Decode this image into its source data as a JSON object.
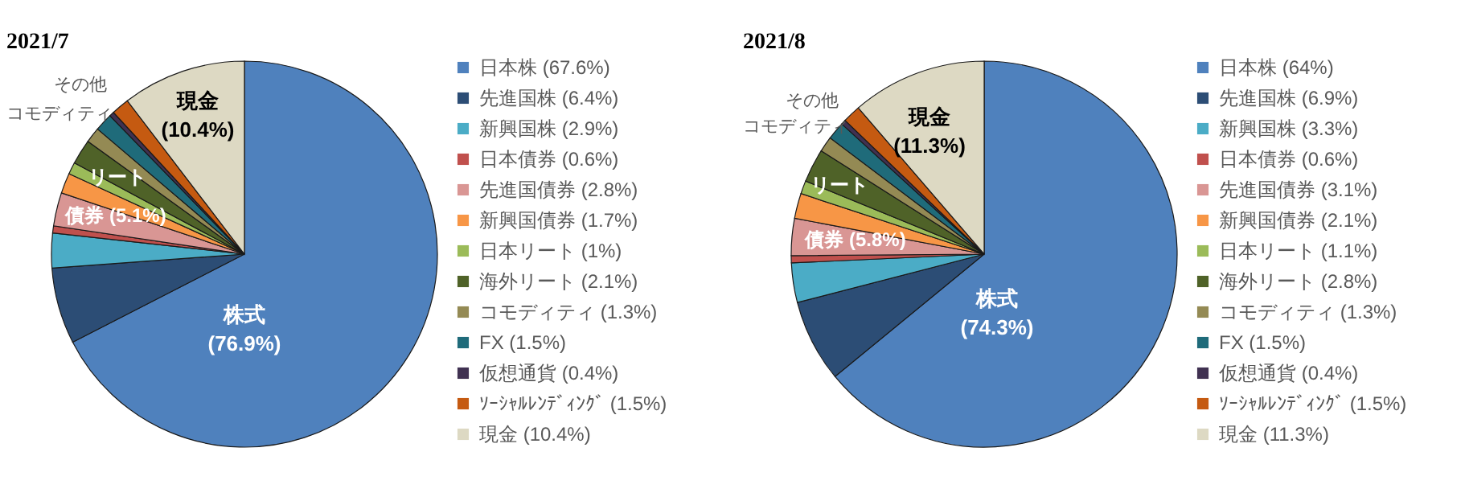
{
  "chart_data": [
    {
      "type": "pie",
      "title": "2021/7",
      "categories": [
        "日本株 (67.6%)",
        "先進国株 (6.4%)",
        "新興国株 (2.9%)",
        "日本債券 (0.6%)",
        "先進国債券 (2.8%)",
        "新興国債券 (1.7%)",
        "日本リート (1%)",
        "海外リート (2.1%)",
        "コモディティ (1.3%)",
        "FX (1.5%)",
        "仮想通貨 (0.4%)",
        "ｿｰｼｬﾙﾚﾝﾃﾞｨﾝｸﾞ (1.5%)",
        "現金 (10.4%)"
      ],
      "values": [
        67.6,
        6.4,
        2.9,
        0.6,
        2.8,
        1.7,
        1,
        2.1,
        1.3,
        1.5,
        0.4,
        1.5,
        10.4
      ],
      "colors": [
        "#4f81bd",
        "#2c4d75",
        "#4bacc6",
        "#c0504d",
        "#d99694",
        "#f79646",
        "#9bbb59",
        "#4f6228",
        "#948a54",
        "#1f6b7a",
        "#403151",
        "#c55a11",
        "#ddd9c3"
      ],
      "legend": "right",
      "annotations": [
        "株式\n(76.9%)",
        "現金\n(10.4%)",
        "債券 (5.1%)",
        "リート",
        "その他",
        "コモディティ"
      ]
    },
    {
      "type": "pie",
      "title": "2021/8",
      "categories": [
        "日本株 (64%)",
        "先進国株 (6.9%)",
        "新興国株 (3.3%)",
        "日本債券 (0.6%)",
        "先進国債券 (3.1%)",
        "新興国債券 (2.1%)",
        "日本リート (1.1%)",
        "海外リート (2.8%)",
        "コモディティ (1.3%)",
        "FX (1.5%)",
        "仮想通貨 (0.4%)",
        "ｿｰｼｬﾙﾚﾝﾃﾞｨﾝｸﾞ (1.5%)",
        "現金 (11.3%)"
      ],
      "values": [
        64,
        6.9,
        3.3,
        0.6,
        3.1,
        2.1,
        1.1,
        2.8,
        1.3,
        1.5,
        0.4,
        1.5,
        11.3
      ],
      "colors": [
        "#4f81bd",
        "#2c4d75",
        "#4bacc6",
        "#c0504d",
        "#d99694",
        "#f79646",
        "#9bbb59",
        "#4f6228",
        "#948a54",
        "#1f6b7a",
        "#403151",
        "#c55a11",
        "#ddd9c3"
      ],
      "legend": "right",
      "annotations": [
        "株式\n(74.3%)",
        "現金\n(11.3%)",
        "債券 (5.8%)",
        "リート",
        "その他",
        "コモディティ"
      ]
    }
  ]
}
